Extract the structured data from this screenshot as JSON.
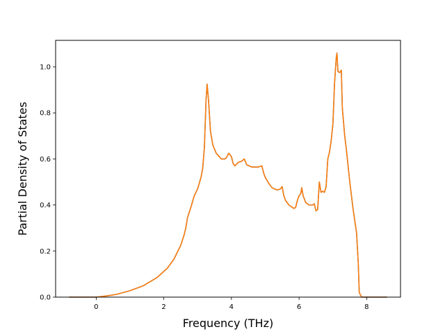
{
  "chart_data": {
    "type": "line",
    "title": "",
    "xlabel": "Frequency (THz)",
    "ylabel": "Partial Density of States",
    "xlim": [
      -1.2,
      9.0
    ],
    "ylim": [
      0.0,
      1.115
    ],
    "xticks": [
      0,
      2,
      4,
      6,
      8
    ],
    "yticks": [
      0.0,
      0.2,
      0.4,
      0.6,
      0.8,
      1.0
    ],
    "xtick_labels": [
      "0",
      "2",
      "4",
      "6",
      "8"
    ],
    "ytick_labels": [
      "0.0",
      "0.2",
      "0.4",
      "0.6",
      "0.8",
      "1.0"
    ],
    "grid": false,
    "legend": "none",
    "series": [
      {
        "color": "#1f77b4",
        "points": [
          [
            -0.8,
            0.0
          ],
          [
            0.0,
            0.0
          ],
          [
            0.3,
            0.005
          ],
          [
            0.6,
            0.012
          ],
          [
            1.0,
            0.028
          ],
          [
            1.4,
            0.05
          ],
          [
            1.8,
            0.085
          ],
          [
            2.1,
            0.125
          ],
          [
            2.3,
            0.165
          ],
          [
            2.5,
            0.225
          ],
          [
            2.6,
            0.27
          ],
          [
            2.65,
            0.3
          ],
          [
            2.7,
            0.345
          ],
          [
            2.8,
            0.39
          ],
          [
            2.9,
            0.44
          ],
          [
            3.0,
            0.47
          ],
          [
            3.1,
            0.52
          ],
          [
            3.15,
            0.56
          ],
          [
            3.2,
            0.65
          ],
          [
            3.25,
            0.86
          ],
          [
            3.28,
            0.925
          ],
          [
            3.32,
            0.86
          ],
          [
            3.38,
            0.72
          ],
          [
            3.45,
            0.66
          ],
          [
            3.55,
            0.625
          ],
          [
            3.7,
            0.6
          ],
          [
            3.8,
            0.6
          ],
          [
            3.85,
            0.605
          ],
          [
            3.92,
            0.625
          ],
          [
            4.0,
            0.61
          ],
          [
            4.05,
            0.58
          ],
          [
            4.1,
            0.57
          ],
          [
            4.2,
            0.585
          ],
          [
            4.3,
            0.59
          ],
          [
            4.38,
            0.6
          ],
          [
            4.45,
            0.575
          ],
          [
            4.6,
            0.565
          ],
          [
            4.8,
            0.565
          ],
          [
            4.9,
            0.57
          ],
          [
            4.95,
            0.54
          ],
          [
            5.0,
            0.52
          ],
          [
            5.1,
            0.495
          ],
          [
            5.2,
            0.475
          ],
          [
            5.35,
            0.465
          ],
          [
            5.45,
            0.47
          ],
          [
            5.5,
            0.48
          ],
          [
            5.55,
            0.44
          ],
          [
            5.6,
            0.42
          ],
          [
            5.7,
            0.4
          ],
          [
            5.8,
            0.39
          ],
          [
            5.85,
            0.385
          ],
          [
            5.9,
            0.39
          ],
          [
            5.95,
            0.42
          ],
          [
            6.0,
            0.44
          ],
          [
            6.05,
            0.45
          ],
          [
            6.08,
            0.475
          ],
          [
            6.12,
            0.44
          ],
          [
            6.2,
            0.41
          ],
          [
            6.3,
            0.4
          ],
          [
            6.4,
            0.4
          ],
          [
            6.45,
            0.405
          ],
          [
            6.5,
            0.375
          ],
          [
            6.55,
            0.38
          ],
          [
            6.6,
            0.5
          ],
          [
            6.65,
            0.455
          ],
          [
            6.7,
            0.46
          ],
          [
            6.75,
            0.455
          ],
          [
            6.8,
            0.48
          ],
          [
            6.85,
            0.6
          ],
          [
            6.9,
            0.63
          ],
          [
            6.95,
            0.68
          ],
          [
            7.0,
            0.75
          ],
          [
            7.05,
            0.93
          ],
          [
            7.1,
            1.04
          ],
          [
            7.12,
            1.06
          ],
          [
            7.15,
            0.98
          ],
          [
            7.2,
            0.975
          ],
          [
            7.25,
            0.985
          ],
          [
            7.28,
            0.82
          ],
          [
            7.35,
            0.7
          ],
          [
            7.4,
            0.64
          ],
          [
            7.5,
            0.5
          ],
          [
            7.6,
            0.38
          ],
          [
            7.7,
            0.28
          ],
          [
            7.75,
            0.15
          ],
          [
            7.78,
            0.02
          ],
          [
            7.85,
            0.0
          ],
          [
            8.6,
            0.0
          ]
        ]
      },
      {
        "color": "#ff7f0e",
        "points": [
          [
            -0.8,
            0.0
          ],
          [
            0.0,
            0.0
          ],
          [
            0.3,
            0.005
          ],
          [
            0.6,
            0.012
          ],
          [
            1.0,
            0.028
          ],
          [
            1.4,
            0.05
          ],
          [
            1.8,
            0.085
          ],
          [
            2.1,
            0.125
          ],
          [
            2.3,
            0.165
          ],
          [
            2.5,
            0.225
          ],
          [
            2.6,
            0.27
          ],
          [
            2.65,
            0.3
          ],
          [
            2.7,
            0.345
          ],
          [
            2.8,
            0.39
          ],
          [
            2.9,
            0.44
          ],
          [
            3.0,
            0.47
          ],
          [
            3.1,
            0.52
          ],
          [
            3.15,
            0.56
          ],
          [
            3.2,
            0.65
          ],
          [
            3.25,
            0.86
          ],
          [
            3.28,
            0.925
          ],
          [
            3.32,
            0.86
          ],
          [
            3.38,
            0.72
          ],
          [
            3.45,
            0.66
          ],
          [
            3.55,
            0.625
          ],
          [
            3.7,
            0.6
          ],
          [
            3.8,
            0.6
          ],
          [
            3.85,
            0.605
          ],
          [
            3.92,
            0.625
          ],
          [
            4.0,
            0.61
          ],
          [
            4.05,
            0.58
          ],
          [
            4.1,
            0.57
          ],
          [
            4.2,
            0.585
          ],
          [
            4.3,
            0.59
          ],
          [
            4.38,
            0.6
          ],
          [
            4.45,
            0.575
          ],
          [
            4.6,
            0.565
          ],
          [
            4.8,
            0.565
          ],
          [
            4.9,
            0.57
          ],
          [
            4.95,
            0.54
          ],
          [
            5.0,
            0.52
          ],
          [
            5.1,
            0.495
          ],
          [
            5.2,
            0.475
          ],
          [
            5.35,
            0.465
          ],
          [
            5.45,
            0.47
          ],
          [
            5.5,
            0.48
          ],
          [
            5.55,
            0.44
          ],
          [
            5.6,
            0.42
          ],
          [
            5.7,
            0.4
          ],
          [
            5.8,
            0.39
          ],
          [
            5.85,
            0.385
          ],
          [
            5.9,
            0.39
          ],
          [
            5.95,
            0.42
          ],
          [
            6.0,
            0.44
          ],
          [
            6.05,
            0.45
          ],
          [
            6.08,
            0.475
          ],
          [
            6.12,
            0.44
          ],
          [
            6.2,
            0.41
          ],
          [
            6.3,
            0.4
          ],
          [
            6.4,
            0.4
          ],
          [
            6.45,
            0.405
          ],
          [
            6.5,
            0.375
          ],
          [
            6.55,
            0.38
          ],
          [
            6.6,
            0.5
          ],
          [
            6.65,
            0.455
          ],
          [
            6.7,
            0.46
          ],
          [
            6.75,
            0.455
          ],
          [
            6.8,
            0.48
          ],
          [
            6.85,
            0.6
          ],
          [
            6.9,
            0.63
          ],
          [
            6.95,
            0.68
          ],
          [
            7.0,
            0.75
          ],
          [
            7.05,
            0.93
          ],
          [
            7.1,
            1.04
          ],
          [
            7.12,
            1.06
          ],
          [
            7.15,
            0.98
          ],
          [
            7.2,
            0.975
          ],
          [
            7.25,
            0.985
          ],
          [
            7.28,
            0.82
          ],
          [
            7.35,
            0.7
          ],
          [
            7.4,
            0.64
          ],
          [
            7.5,
            0.5
          ],
          [
            7.6,
            0.38
          ],
          [
            7.7,
            0.28
          ],
          [
            7.75,
            0.15
          ],
          [
            7.78,
            0.02
          ],
          [
            7.85,
            0.0
          ],
          [
            8.6,
            0.0
          ]
        ]
      }
    ]
  }
}
